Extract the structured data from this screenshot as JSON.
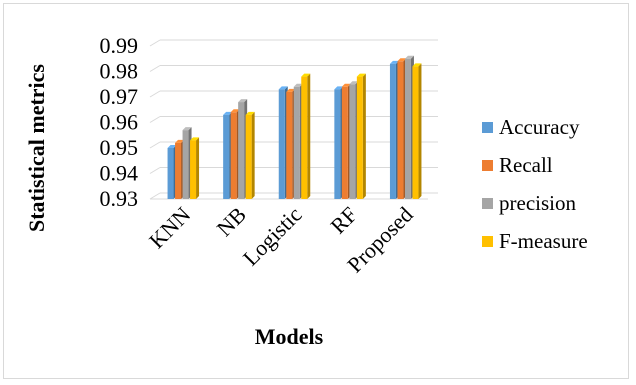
{
  "chart_data": {
    "type": "bar",
    "categories": [
      "KNN",
      "NB",
      "Logistic",
      "RF",
      "Proposed"
    ],
    "series": [
      {
        "name": "Accuracy",
        "values": [
          0.95,
          0.963,
          0.973,
          0.973,
          0.983
        ],
        "color": "#5b9bd5"
      },
      {
        "name": "Recall",
        "values": [
          0.952,
          0.964,
          0.972,
          0.974,
          0.984
        ],
        "color": "#ed7d31"
      },
      {
        "name": "precision",
        "values": [
          0.957,
          0.968,
          0.974,
          0.975,
          0.985
        ],
        "color": "#a5a5a5"
      },
      {
        "name": "F-measure",
        "values": [
          0.953,
          0.963,
          0.978,
          0.978,
          0.982
        ],
        "color": "#ffc000"
      }
    ],
    "xlabel": "Models",
    "ylabel": "Statistical metrics",
    "ylim": [
      0.93,
      0.99
    ],
    "yticks": [
      "0.93",
      "0.94",
      "0.95",
      "0.96",
      "0.97",
      "0.98",
      "0.99"
    ],
    "grid": true,
    "legend_position": "right",
    "style": "3d-clustered-column"
  }
}
